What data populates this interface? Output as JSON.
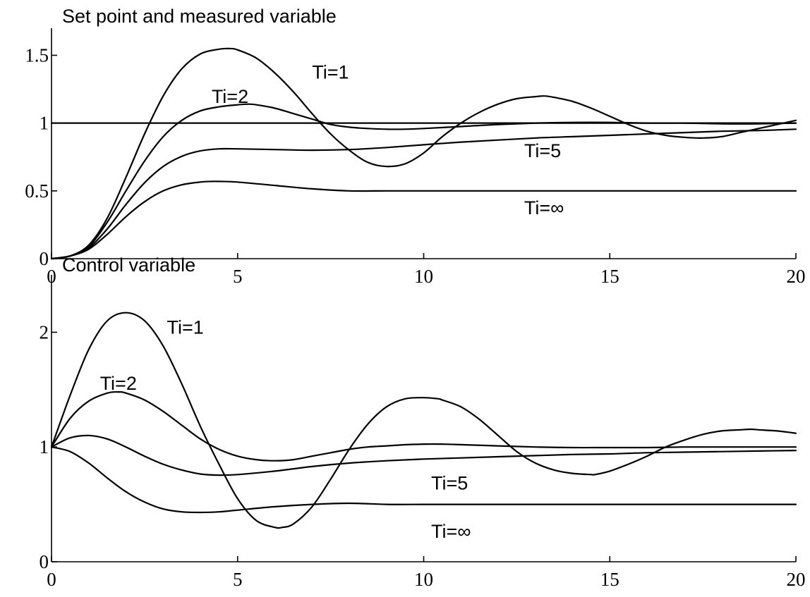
{
  "chart_data": [
    {
      "type": "line",
      "title": "Set point and measured variable",
      "xlabel": "",
      "ylabel": "",
      "xlim": [
        0,
        20
      ],
      "ylim": [
        0,
        1.7
      ],
      "x_ticks": [
        "0",
        "5",
        "10",
        "15",
        "20"
      ],
      "y_ticks": [
        "0",
        "0.5",
        "1",
        "1.5"
      ],
      "grid": false,
      "series": [
        {
          "name": "",
          "x": [
            0,
            20
          ],
          "values": [
            1,
            1
          ]
        },
        {
          "name": "Ti=1",
          "x": [
            0,
            0.5,
            1,
            1.5,
            2,
            2.5,
            3,
            3.5,
            4,
            4.5,
            4.8,
            5,
            5.5,
            6,
            6.5,
            7,
            7.5,
            8,
            8.5,
            9,
            9.5,
            10,
            10.5,
            11,
            11.5,
            12,
            12.5,
            13,
            13.25,
            13.5,
            14,
            14.5,
            15,
            15.5,
            16,
            16.5,
            17,
            17.5,
            18,
            18.5,
            19,
            19.5,
            20
          ],
          "values": [
            0,
            0.02,
            0.1,
            0.3,
            0.6,
            0.92,
            1.2,
            1.4,
            1.51,
            1.545,
            1.55,
            1.54,
            1.48,
            1.37,
            1.23,
            1.07,
            0.92,
            0.8,
            0.71,
            0.68,
            0.7,
            0.78,
            0.9,
            1.0,
            1.08,
            1.14,
            1.18,
            1.195,
            1.2,
            1.19,
            1.16,
            1.11,
            1.05,
            0.99,
            0.94,
            0.91,
            0.895,
            0.89,
            0.9,
            0.93,
            0.96,
            0.99,
            1.02
          ]
        },
        {
          "name": "Ti=2",
          "x": [
            0,
            0.5,
            1,
            1.5,
            2,
            2.5,
            3,
            3.5,
            4,
            4.5,
            5,
            5.3,
            5.5,
            6,
            6.5,
            7,
            7.5,
            8,
            8.5,
            9,
            9.5,
            10,
            11,
            12,
            13,
            14,
            15,
            16,
            17,
            18,
            19,
            20
          ],
          "values": [
            0,
            0.02,
            0.09,
            0.27,
            0.5,
            0.72,
            0.9,
            1.02,
            1.09,
            1.12,
            1.135,
            1.14,
            1.135,
            1.11,
            1.07,
            1.03,
            0.99,
            0.97,
            0.96,
            0.955,
            0.955,
            0.96,
            0.975,
            0.99,
            1.0,
            1.005,
            1.005,
            1.0,
            1.0,
            0.995,
            0.995,
            1.0
          ]
        },
        {
          "name": "Ti=5",
          "x": [
            0,
            0.5,
            1,
            1.5,
            2,
            2.5,
            3,
            3.5,
            4,
            4.5,
            5,
            6,
            7,
            8,
            9,
            10,
            11,
            12,
            13,
            14,
            15,
            16,
            17,
            18,
            19,
            20
          ],
          "values": [
            0,
            0.02,
            0.08,
            0.22,
            0.4,
            0.56,
            0.68,
            0.755,
            0.795,
            0.81,
            0.81,
            0.805,
            0.8,
            0.805,
            0.82,
            0.84,
            0.86,
            0.875,
            0.89,
            0.9,
            0.91,
            0.92,
            0.93,
            0.94,
            0.945,
            0.955
          ]
        },
        {
          "name": "Ti=∞",
          "x": [
            0,
            0.5,
            1,
            1.5,
            2,
            2.5,
            3,
            3.5,
            4,
            4.3,
            4.5,
            5,
            6,
            7,
            8,
            9,
            10,
            11,
            12,
            14,
            16,
            18,
            20
          ],
          "values": [
            0,
            0.02,
            0.07,
            0.18,
            0.31,
            0.42,
            0.5,
            0.545,
            0.565,
            0.57,
            0.57,
            0.565,
            0.54,
            0.515,
            0.5,
            0.5,
            0.5,
            0.5,
            0.5,
            0.5,
            0.5,
            0.5,
            0.5
          ]
        }
      ],
      "labels": [
        {
          "text": "Ti=1",
          "x": 7.0,
          "y": 1.38
        },
        {
          "text": "Ti=2",
          "x": 4.3,
          "y": 1.2
        },
        {
          "text": "Ti=5",
          "x": 12.7,
          "y": 0.8
        },
        {
          "text": "Ti=∞",
          "x": 12.7,
          "y": 0.38
        }
      ]
    },
    {
      "type": "line",
      "title": "Control variable",
      "xlabel": "",
      "ylabel": "",
      "xlim": [
        0,
        20
      ],
      "ylim": [
        0,
        2.5
      ],
      "x_ticks": [
        "0",
        "5",
        "10",
        "15",
        "20"
      ],
      "y_ticks": [
        "0",
        "1",
        "2"
      ],
      "grid": false,
      "series": [
        {
          "name": "Ti=1",
          "x": [
            0,
            0.5,
            1,
            1.5,
            2,
            2.5,
            3,
            3.5,
            4,
            4.5,
            5,
            5.5,
            6,
            6.2,
            6.5,
            7,
            7.5,
            8,
            8.5,
            9,
            9.5,
            10,
            10.4,
            10.5,
            11,
            11.5,
            12,
            12.5,
            13,
            13.5,
            14,
            14.5,
            14.6,
            15,
            15.5,
            16,
            16.5,
            17,
            17.5,
            18,
            18.5,
            18.8,
            19,
            19.5,
            20
          ],
          "values": [
            1.0,
            1.45,
            1.85,
            2.1,
            2.17,
            2.1,
            1.88,
            1.55,
            1.18,
            0.85,
            0.55,
            0.36,
            0.3,
            0.3,
            0.33,
            0.48,
            0.72,
            0.98,
            1.2,
            1.35,
            1.42,
            1.43,
            1.42,
            1.41,
            1.35,
            1.24,
            1.1,
            0.96,
            0.86,
            0.8,
            0.77,
            0.76,
            0.76,
            0.79,
            0.85,
            0.92,
            1.0,
            1.06,
            1.11,
            1.14,
            1.15,
            1.155,
            1.15,
            1.14,
            1.12
          ]
        },
        {
          "name": "Ti=2",
          "x": [
            0,
            0.5,
            1,
            1.5,
            1.8,
            2,
            2.5,
            3,
            3.5,
            4,
            4.5,
            5,
            5.5,
            6,
            6.5,
            7,
            7.5,
            8,
            8.5,
            9,
            9.5,
            10,
            10.5,
            11,
            12,
            13,
            14,
            15,
            16,
            17,
            18,
            19,
            20
          ],
          "values": [
            1.0,
            1.25,
            1.4,
            1.47,
            1.48,
            1.47,
            1.41,
            1.31,
            1.19,
            1.07,
            0.98,
            0.92,
            0.89,
            0.88,
            0.89,
            0.92,
            0.95,
            0.98,
            1.0,
            1.01,
            1.02,
            1.025,
            1.025,
            1.02,
            1.01,
            1.0,
            0.995,
            0.995,
            0.995,
            1.0,
            1.0,
            1.0,
            1.0
          ]
        },
        {
          "name": "Ti=5",
          "x": [
            0,
            0.5,
            1,
            1.5,
            2,
            2.5,
            3,
            3.5,
            4,
            4.5,
            5,
            6,
            7,
            8,
            9,
            10,
            11,
            12,
            13,
            14,
            15,
            16,
            17,
            18,
            19,
            20
          ],
          "values": [
            1.0,
            1.08,
            1.1,
            1.07,
            1.0,
            0.92,
            0.85,
            0.8,
            0.765,
            0.755,
            0.76,
            0.79,
            0.83,
            0.86,
            0.88,
            0.895,
            0.905,
            0.915,
            0.925,
            0.935,
            0.94,
            0.95,
            0.955,
            0.96,
            0.965,
            0.97
          ]
        },
        {
          "name": "Ti=∞",
          "x": [
            0,
            0.5,
            1,
            1.5,
            2,
            2.5,
            3,
            3.5,
            4,
            4.5,
            5,
            6,
            7,
            8,
            9,
            10,
            11,
            12,
            14,
            16,
            18,
            20
          ],
          "values": [
            1.0,
            0.96,
            0.86,
            0.73,
            0.61,
            0.52,
            0.46,
            0.435,
            0.43,
            0.435,
            0.45,
            0.48,
            0.5,
            0.51,
            0.5,
            0.5,
            0.5,
            0.5,
            0.5,
            0.5,
            0.5,
            0.5
          ]
        }
      ],
      "labels": [
        {
          "text": "Ti=1",
          "x": 3.1,
          "y": 2.05
        },
        {
          "text": "Ti=2",
          "x": 1.3,
          "y": 1.56
        },
        {
          "text": "Ti=5",
          "x": 10.2,
          "y": 0.69
        },
        {
          "text": "Ti=∞",
          "x": 10.2,
          "y": 0.27
        }
      ]
    }
  ]
}
